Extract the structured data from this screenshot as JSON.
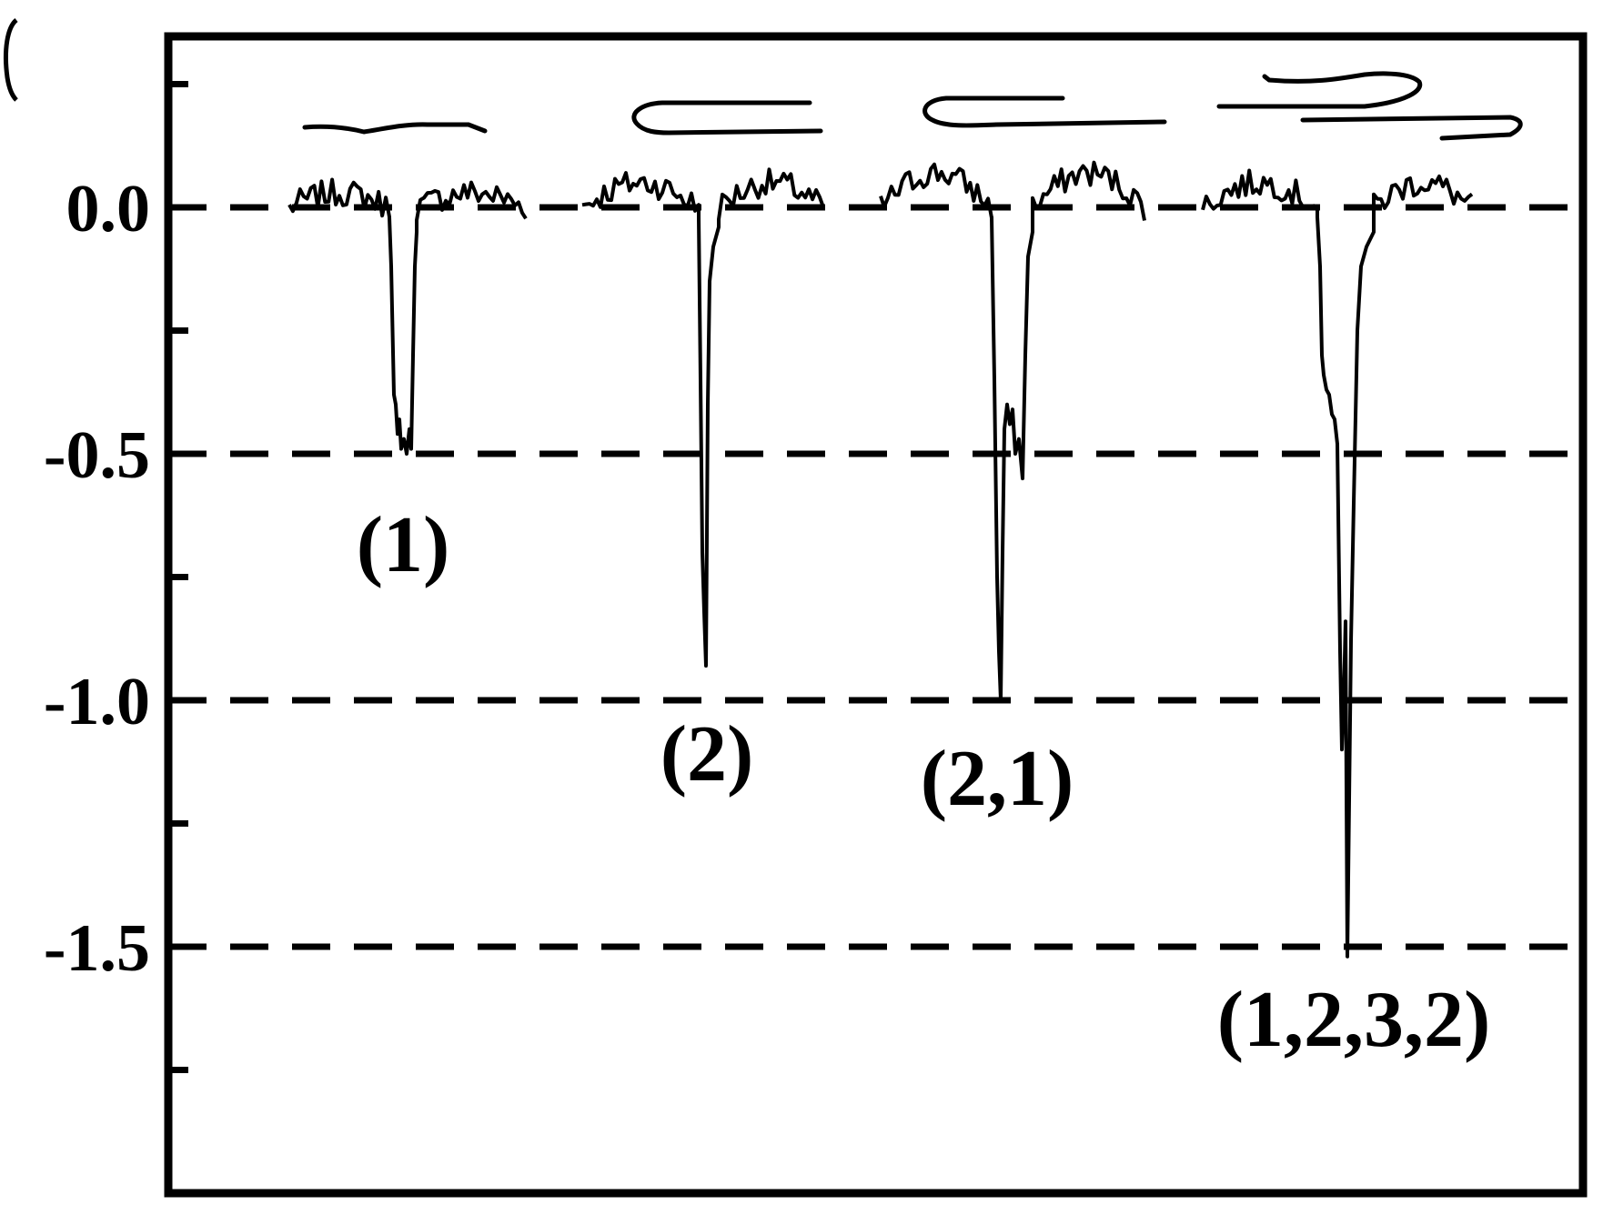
{
  "chart_data": {
    "type": "line",
    "title": "",
    "xlabel": "",
    "ylabel": "",
    "ylim": [
      -1.95,
      0.35
    ],
    "y_ticks": [
      {
        "value": 0.0,
        "label": "0.0"
      },
      {
        "value": -0.5,
        "label": "-0.5"
      },
      {
        "value": -1.0,
        "label": "-1.0"
      },
      {
        "value": -1.5,
        "label": "-1.5"
      }
    ],
    "minor_ticks": [
      0.25,
      -0.25,
      -0.75,
      -1.25,
      -1.75
    ],
    "reference_lines": [
      0.0,
      -0.5,
      -1.0,
      -1.5
    ],
    "grid": false,
    "line_color": "#000000",
    "events": [
      {
        "label": "(1)",
        "depth": -0.5,
        "shape": "single-step blockade"
      },
      {
        "label": "(2)",
        "depth": -0.93,
        "shape": "folded spike"
      },
      {
        "label": "(2,1)",
        "depth": -1.0,
        "shape": "spike then step"
      },
      {
        "label": "(1,2,3,2)",
        "depth": -1.52,
        "shape": "multi-level"
      }
    ]
  }
}
